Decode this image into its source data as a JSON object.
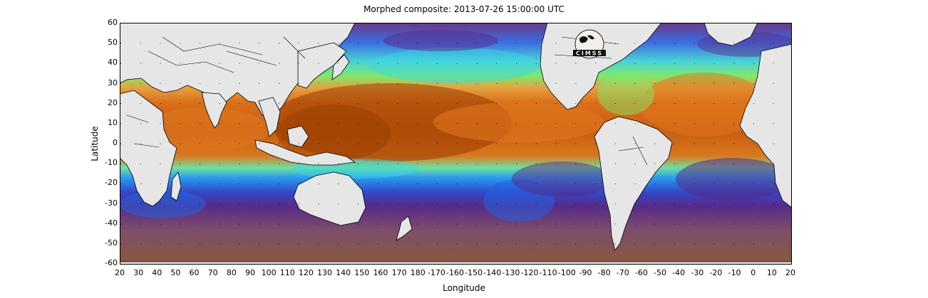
{
  "title": "Morphed composite: 2013-07-26 15:00:00 UTC",
  "xlabel": "Longitude",
  "ylabel": "Latitude",
  "x_tick_labels": [
    "20",
    "30",
    "40",
    "50",
    "60",
    "70",
    "80",
    "90",
    "100",
    "110",
    "120",
    "130",
    "140",
    "150",
    "160",
    "170",
    "180",
    "-170",
    "-160",
    "-150",
    "-140",
    "-130",
    "-120",
    "-110",
    "-100",
    "-90",
    "-80",
    "-70",
    "-60",
    "-50",
    "-40",
    "-30",
    "-20",
    "-10",
    "0",
    "10",
    "20"
  ],
  "y_tick_labels": [
    "60",
    "50",
    "40",
    "30",
    "20",
    "10",
    "0",
    "-10",
    "-20",
    "-30",
    "-40",
    "-50",
    "-60"
  ],
  "logo_text": "CIMSS",
  "colors": {
    "land": "#e6e6e6",
    "coast": "#000000",
    "tropical_moist": "#e0761e",
    "very_moist": "#9a3d00",
    "moderate": "#ffd23c",
    "mid": "#7fe86a",
    "cyan": "#3ad6e6",
    "blue": "#1e66e8",
    "purple": "#5a2a88",
    "dry_brown": "#8a5a4a"
  }
}
